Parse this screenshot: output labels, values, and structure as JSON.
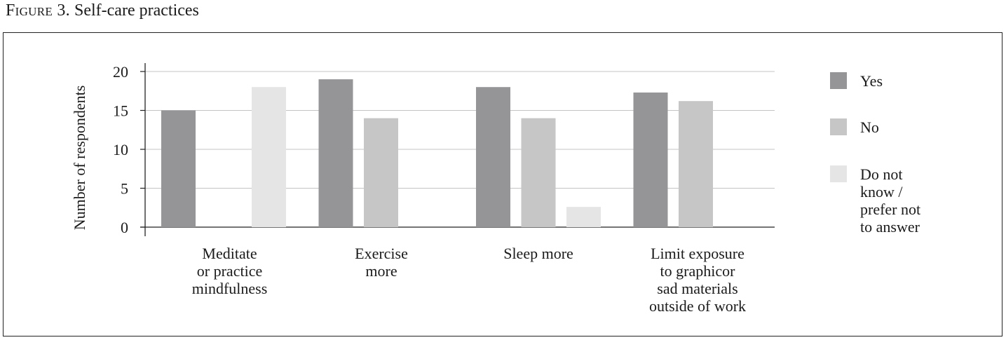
{
  "figure": {
    "label": "Figure 3.",
    "caption": "Self-care practices"
  },
  "chart_data": {
    "type": "bar",
    "categories": [
      [
        "Meditate",
        "or practice",
        "mindfulness"
      ],
      [
        "Exercise",
        "more"
      ],
      [
        "Sleep more"
      ],
      [
        "Limit exposure",
        "to graphicor",
        "sad materials",
        "outside of work"
      ]
    ],
    "series": [
      {
        "name": "Yes",
        "color": "#959597",
        "values": [
          15,
          19,
          18,
          17.3
        ]
      },
      {
        "name": "No",
        "color": "#c6c6c7",
        "values": [
          null,
          14,
          14,
          16.2
        ]
      },
      {
        "name": "Do not know / prefer not to answer",
        "color": "#e5e5e6",
        "values": [
          18,
          null,
          2.6,
          null
        ]
      }
    ],
    "legend": [
      {
        "lines": [
          "Yes"
        ],
        "color": "#959597"
      },
      {
        "lines": [
          "No"
        ],
        "color": "#c6c6c7"
      },
      {
        "lines": [
          "Do not",
          "know /",
          "prefer not",
          "to answer"
        ],
        "color": "#e5e5e6"
      }
    ],
    "ylabel": "Number of respondents",
    "xlabel": "",
    "ylim": [
      0,
      20
    ],
    "yticks": [
      0,
      5,
      10,
      15,
      20
    ],
    "grid": true,
    "legend_position": "right"
  }
}
